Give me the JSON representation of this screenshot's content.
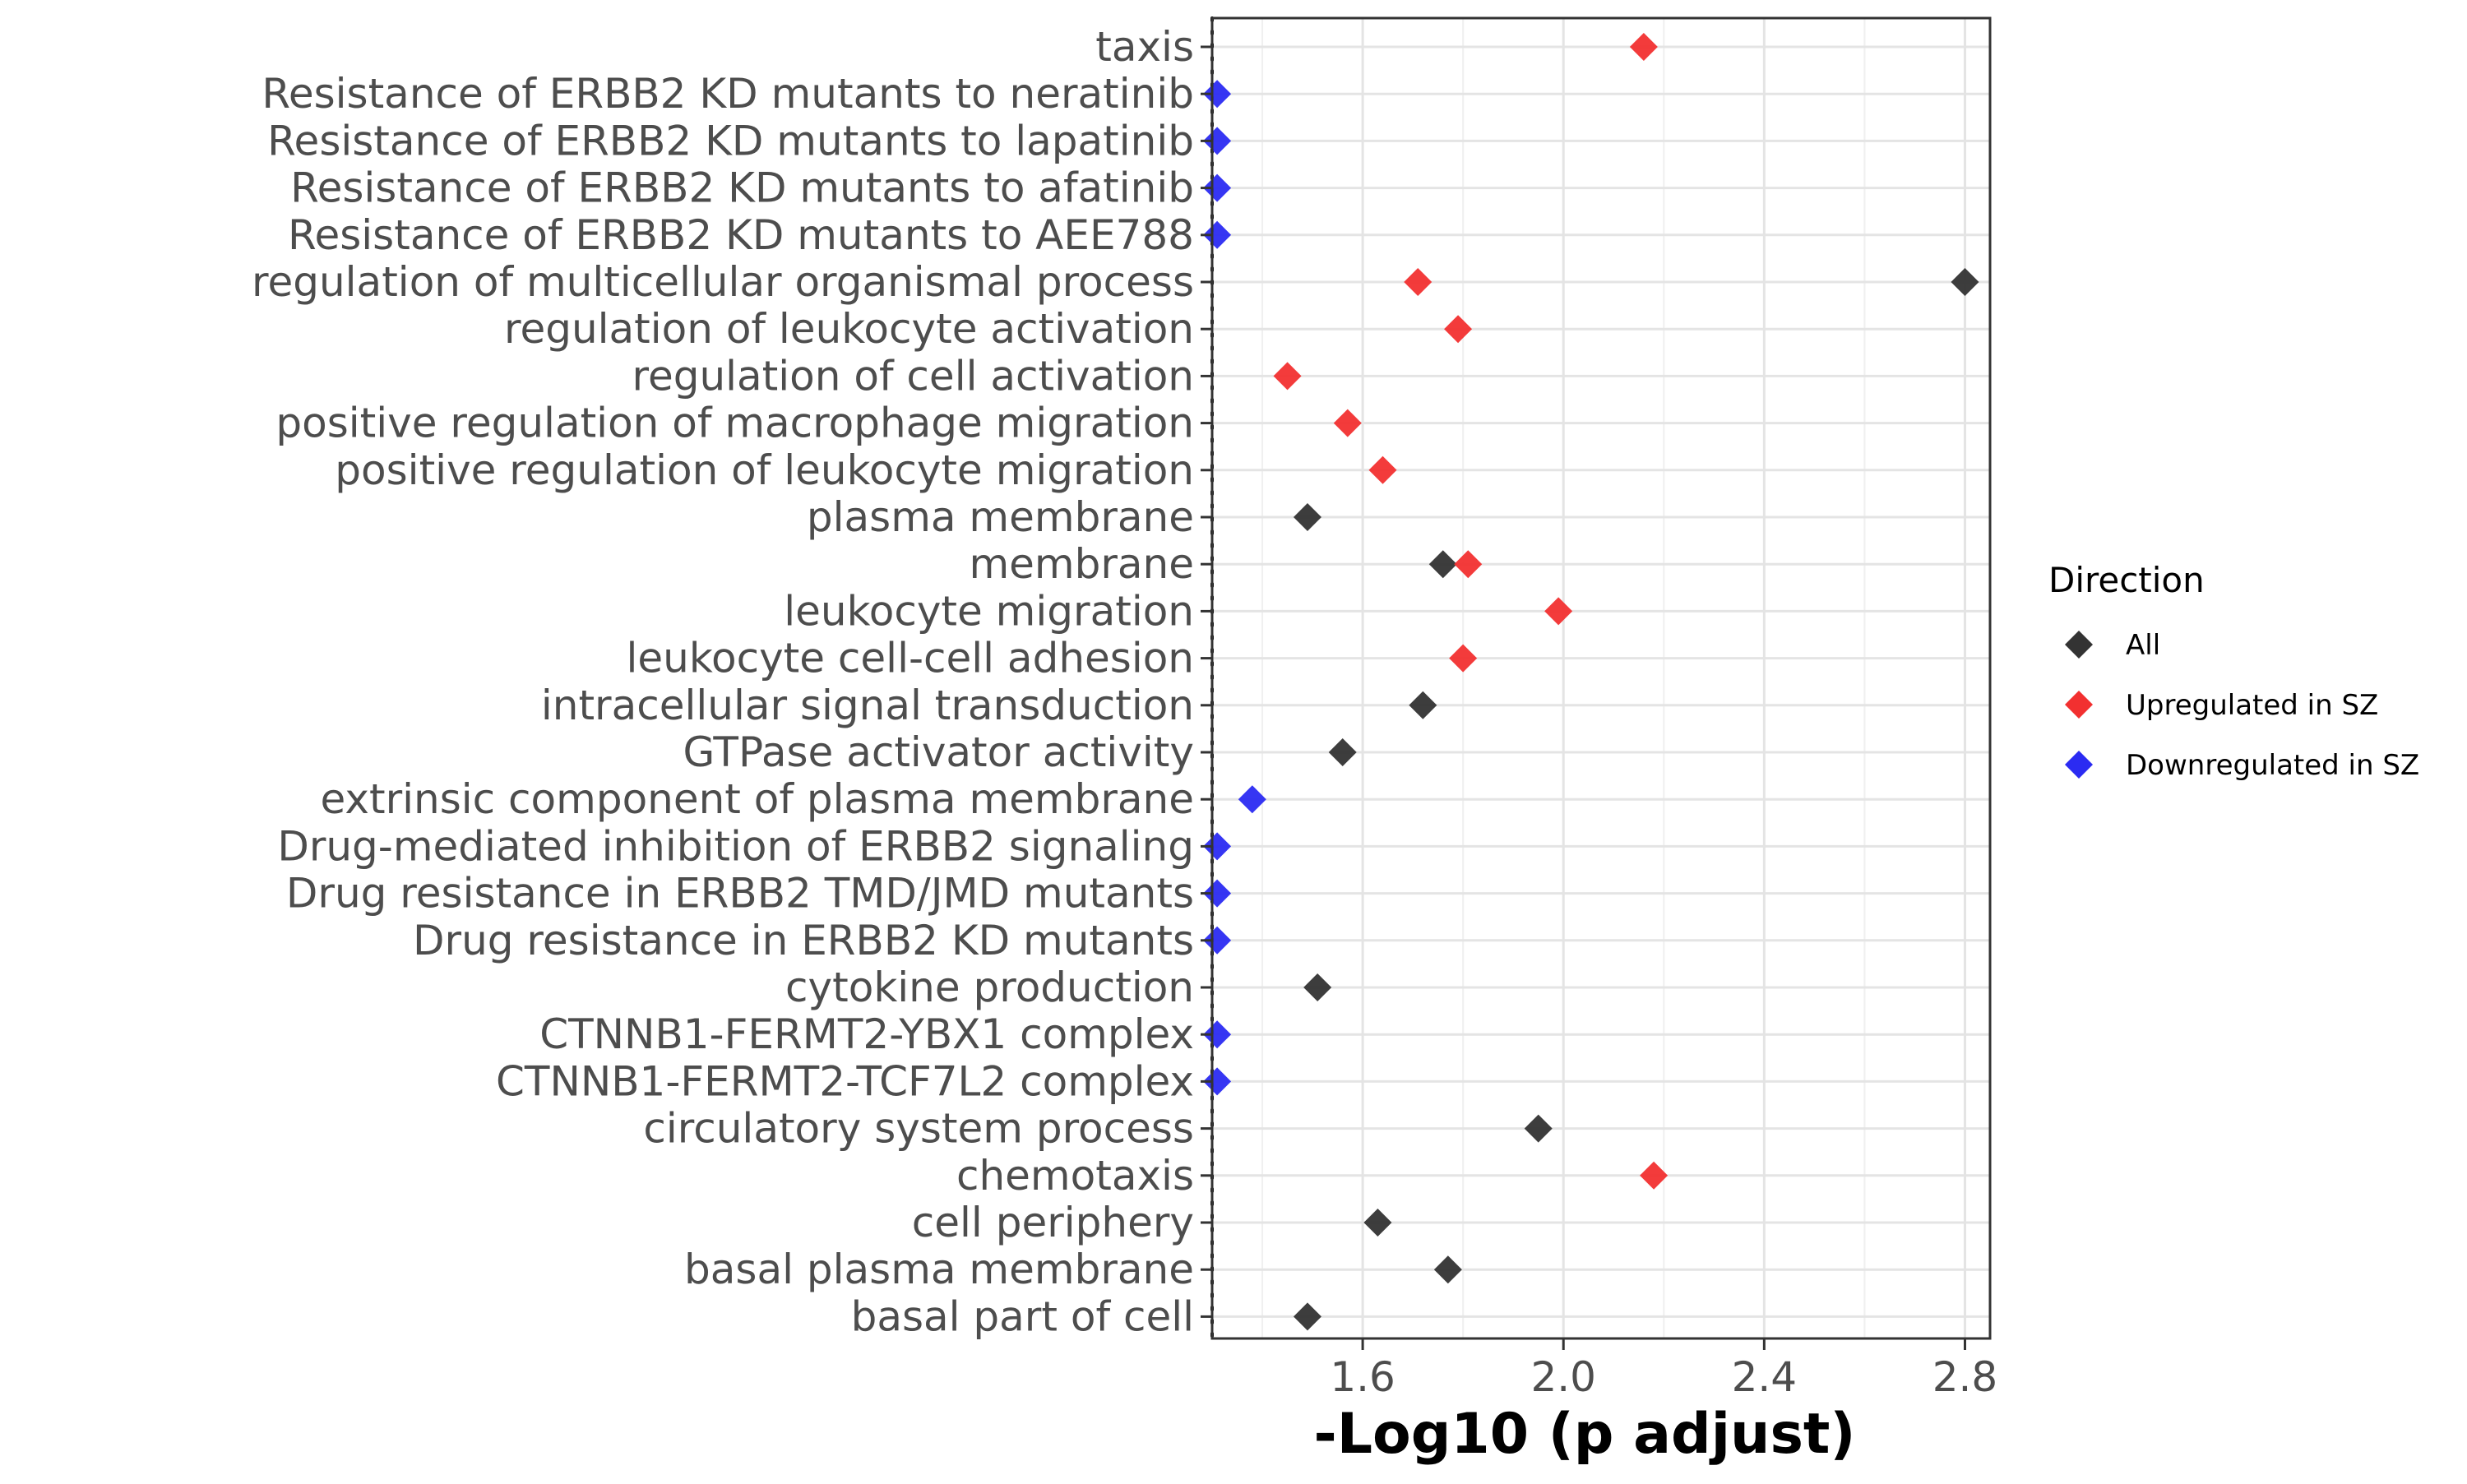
{
  "chart_data": {
    "type": "scatter",
    "xlabel": "-Log10 (p adjust)",
    "ylabel": "",
    "xlim": [
      1.3,
      2.85
    ],
    "x_ticks": [
      "1.6",
      "2.0",
      "2.4",
      "2.8"
    ],
    "x_tick_values": [
      1.6,
      2.0,
      2.4,
      2.8
    ],
    "threshold_line": 1.3,
    "grid": true,
    "legend_placement": "right",
    "legend_title": "Direction",
    "categories": [
      "taxis",
      "Resistance of ERBB2 KD mutants to neratinib",
      "Resistance of ERBB2 KD mutants to lapatinib",
      "Resistance of ERBB2 KD mutants to afatinib",
      "Resistance of ERBB2 KD mutants to AEE788",
      "regulation of multicellular organismal process",
      "regulation of leukocyte activation",
      "regulation of cell activation",
      "positive regulation of macrophage migration",
      "positive regulation of leukocyte migration",
      "plasma membrane",
      "membrane",
      "leukocyte migration",
      "leukocyte cell-cell adhesion",
      "intracellular signal transduction",
      "GTPase activator activity",
      "extrinsic component of plasma membrane",
      "Drug-mediated inhibition of ERBB2 signaling",
      "Drug resistance in ERBB2 TMD/JMD mutants",
      "Drug resistance in ERBB2 KD mutants",
      "cytokine production",
      "CTNNB1-FERMT2-YBX1 complex",
      "CTNNB1-FERMT2-TCF7L2 complex",
      "circulatory system process",
      "chemotaxis",
      "cell periphery",
      "basal plasma membrane",
      "basal part of cell"
    ],
    "series": [
      {
        "name": "All",
        "color": "#333333",
        "points": [
          {
            "category": "regulation of multicellular organismal process",
            "x": 2.8
          },
          {
            "category": "plasma membrane",
            "x": 1.49
          },
          {
            "category": "membrane",
            "x": 1.76
          },
          {
            "category": "intracellular signal transduction",
            "x": 1.72
          },
          {
            "category": "GTPase activator activity",
            "x": 1.56
          },
          {
            "category": "cytokine production",
            "x": 1.51
          },
          {
            "category": "circulatory system process",
            "x": 1.95
          },
          {
            "category": "cell periphery",
            "x": 1.63
          },
          {
            "category": "basal plasma membrane",
            "x": 1.77
          },
          {
            "category": "basal part of cell",
            "x": 1.49
          }
        ]
      },
      {
        "name": "Upregulated in SZ",
        "color": "#f23030",
        "points": [
          {
            "category": "taxis",
            "x": 2.16
          },
          {
            "category": "regulation of multicellular organismal process",
            "x": 1.71
          },
          {
            "category": "regulation of leukocyte activation",
            "x": 1.79
          },
          {
            "category": "regulation of cell activation",
            "x": 1.45
          },
          {
            "category": "positive regulation of macrophage migration",
            "x": 1.57
          },
          {
            "category": "positive regulation of leukocyte migration",
            "x": 1.64
          },
          {
            "category": "membrane",
            "x": 1.81
          },
          {
            "category": "leukocyte migration",
            "x": 1.99
          },
          {
            "category": "leukocyte cell-cell adhesion",
            "x": 1.8
          },
          {
            "category": "chemotaxis",
            "x": 2.18
          }
        ]
      },
      {
        "name": "Downregulated in SZ",
        "color": "#2b2bf2",
        "points": [
          {
            "category": "Resistance of ERBB2 KD mutants to neratinib",
            "x": 1.31
          },
          {
            "category": "Resistance of ERBB2 KD mutants to lapatinib",
            "x": 1.31
          },
          {
            "category": "Resistance of ERBB2 KD mutants to afatinib",
            "x": 1.31
          },
          {
            "category": "Resistance of ERBB2 KD mutants to AEE788",
            "x": 1.31
          },
          {
            "category": "extrinsic component of plasma membrane",
            "x": 1.38
          },
          {
            "category": "Drug-mediated inhibition of ERBB2 signaling",
            "x": 1.31
          },
          {
            "category": "Drug resistance in ERBB2 TMD/JMD mutants",
            "x": 1.31
          },
          {
            "category": "Drug resistance in ERBB2 KD mutants",
            "x": 1.31
          },
          {
            "category": "CTNNB1-FERMT2-YBX1 complex",
            "x": 1.31
          },
          {
            "category": "CTNNB1-FERMT2-TCF7L2 complex",
            "x": 1.31
          }
        ]
      }
    ]
  }
}
